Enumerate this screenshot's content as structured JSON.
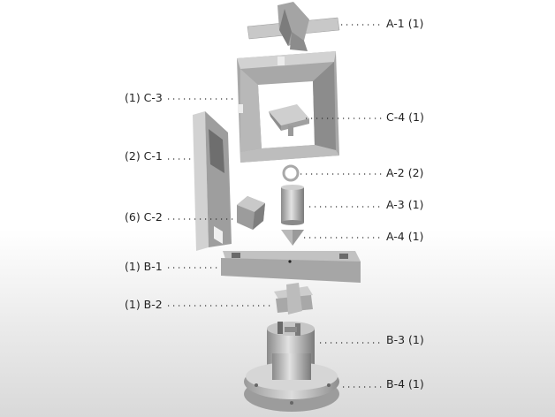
{
  "labels": {
    "a1": "A-1 (1)",
    "c3": "(1) C-3",
    "c4": "C-4 (1)",
    "c1": "(2) C-1",
    "a2": "A-2 (2)",
    "c2": "(6) C-2",
    "a3": "A-3 (1)",
    "a4": "A-4 (1)",
    "b1": "(1) B-1",
    "b2": "(1) B-2",
    "b3": "B-3 (1)",
    "b4": "B-4 (1)"
  },
  "colors": {
    "part_light": "#d0d0d0",
    "part_mid": "#a9a9a9",
    "part_dark": "#7f7f7f",
    "leader": "#333333",
    "text": "#222222"
  }
}
